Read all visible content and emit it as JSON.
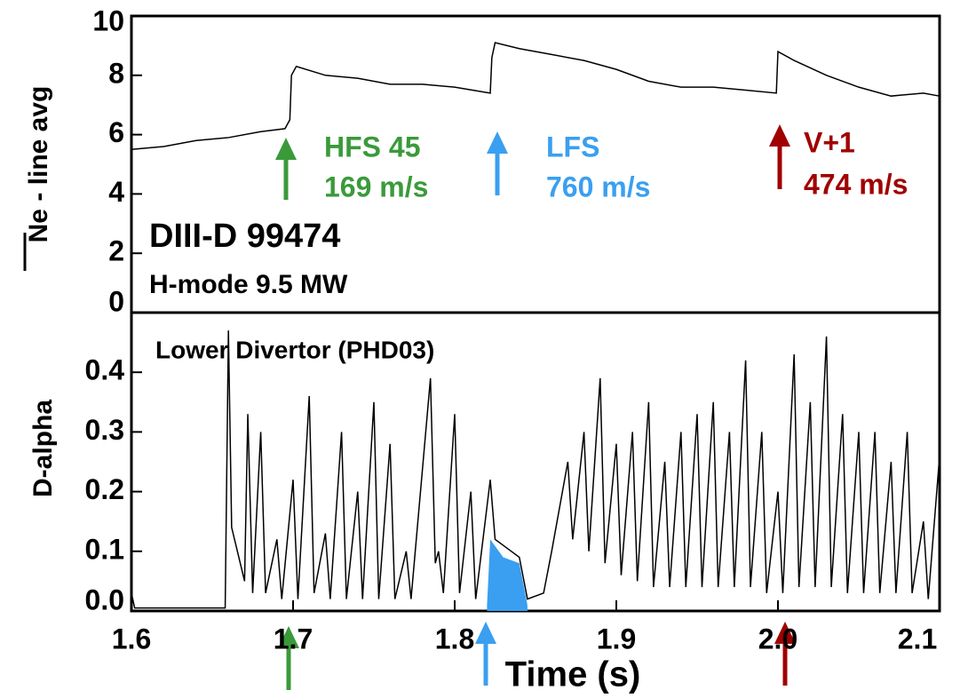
{
  "chart_data": [
    {
      "type": "line",
      "ylabel": "Ne - line avg",
      "xlim": [
        1.6,
        2.1
      ],
      "ylim": [
        0,
        10
      ],
      "yticks": [
        0,
        2,
        4,
        6,
        8,
        10
      ],
      "series": [
        {
          "color": "#000000",
          "x": [
            1.6,
            1.62,
            1.64,
            1.66,
            1.68,
            1.695,
            1.698,
            1.699,
            1.702,
            1.72,
            1.74,
            1.76,
            1.78,
            1.8,
            1.822,
            1.823,
            1.825,
            1.84,
            1.86,
            1.88,
            1.9,
            1.92,
            1.94,
            1.96,
            1.98,
            1.999,
            2.0,
            2.01,
            2.03,
            2.05,
            2.07,
            2.09,
            2.1
          ],
          "values": [
            5.5,
            5.6,
            5.8,
            5.9,
            6.1,
            6.2,
            6.5,
            8.0,
            8.3,
            8.0,
            7.9,
            7.7,
            7.7,
            7.6,
            7.4,
            8.6,
            9.1,
            8.9,
            8.7,
            8.5,
            8.2,
            7.8,
            7.6,
            7.6,
            7.5,
            7.4,
            8.8,
            8.5,
            8.0,
            7.6,
            7.3,
            7.4,
            7.3
          ]
        }
      ],
      "annotations": [
        {
          "text": "HFS 45",
          "color": "#3a9a3a"
        },
        {
          "text": "169 m/s",
          "color": "#3a9a3a"
        },
        {
          "text": "LFS",
          "color": "#3a9ff0"
        },
        {
          "text": "760 m/s",
          "color": "#3a9ff0"
        },
        {
          "text": "V+1",
          "color": "#a00000"
        },
        {
          "text": "474 m/s",
          "color": "#a00000"
        },
        {
          "text": "DIII-D 99474",
          "color": "#000000"
        },
        {
          "text": "H-mode 9.5 MW",
          "color": "#000000"
        }
      ]
    },
    {
      "type": "line",
      "ylabel": "D-alpha",
      "xlabel": "Time (s)",
      "xlim": [
        1.6,
        2.1
      ],
      "ylim": [
        0,
        0.5
      ],
      "yticks": [
        {
          "value": 0,
          "label": "0.0"
        },
        0.1,
        0.2,
        0.3,
        0.4
      ],
      "xticks": [
        1.6,
        1.7,
        1.8,
        1.9,
        {
          "value": 2,
          "label": "2.0"
        },
        2.1
      ],
      "series": [
        {
          "color": "#000000",
          "x": [
            1.6,
            1.602,
            1.658,
            1.66,
            1.662,
            1.67,
            1.672,
            1.675,
            1.68,
            1.683,
            1.69,
            1.693,
            1.7,
            1.703,
            1.71,
            1.713,
            1.72,
            1.723,
            1.73,
            1.733,
            1.74,
            1.743,
            1.75,
            1.753,
            1.76,
            1.763,
            1.77,
            1.773,
            1.785,
            1.788,
            1.79,
            1.793,
            1.8,
            1.803,
            1.81,
            1.813,
            1.822,
            1.825,
            1.83,
            1.84,
            1.845,
            1.855,
            1.86,
            1.87,
            1.873,
            1.88,
            1.883,
            1.89,
            1.893,
            1.9,
            1.903,
            1.91,
            1.913,
            1.92,
            1.923,
            1.93,
            1.933,
            1.94,
            1.943,
            1.95,
            1.953,
            1.96,
            1.963,
            1.97,
            1.973,
            1.98,
            1.983,
            1.99,
            1.993,
            2.0,
            2.003,
            2.01,
            2.013,
            2.02,
            2.023,
            2.03,
            2.033,
            2.04,
            2.043,
            2.05,
            2.053,
            2.06,
            2.063,
            2.07,
            2.073,
            2.08,
            2.083,
            2.09,
            2.093,
            2.1
          ],
          "values": [
            0.03,
            0.005,
            0.005,
            0.47,
            0.14,
            0.05,
            0.33,
            0.03,
            0.3,
            0.03,
            0.12,
            0.02,
            0.22,
            0.02,
            0.36,
            0.03,
            0.13,
            0.02,
            0.3,
            0.02,
            0.2,
            0.02,
            0.35,
            0.02,
            0.28,
            0.02,
            0.1,
            0.02,
            0.39,
            0.08,
            0.1,
            0.03,
            0.33,
            0.03,
            0.2,
            0.02,
            0.22,
            0.12,
            0.11,
            0.09,
            0.02,
            0.03,
            0.1,
            0.25,
            0.12,
            0.3,
            0.1,
            0.39,
            0.08,
            0.28,
            0.06,
            0.3,
            0.05,
            0.35,
            0.04,
            0.25,
            0.04,
            0.3,
            0.04,
            0.33,
            0.04,
            0.35,
            0.04,
            0.3,
            0.04,
            0.42,
            0.04,
            0.3,
            0.03,
            0.2,
            0.03,
            0.43,
            0.04,
            0.35,
            0.04,
            0.46,
            0.04,
            0.33,
            0.03,
            0.3,
            0.03,
            0.3,
            0.03,
            0.25,
            0.03,
            0.3,
            0.03,
            0.15,
            0.02,
            0.26
          ]
        },
        {
          "color": "#3a9ff0",
          "fill": true,
          "x": [
            1.82,
            1.822,
            1.83,
            1.84,
            1.845
          ],
          "values": [
            0.01,
            0.12,
            0.09,
            0.08,
            0.01
          ]
        }
      ],
      "annotations": [
        {
          "text": "Lower Divertor (PHD03)",
          "color": "#000000"
        }
      ]
    }
  ]
}
